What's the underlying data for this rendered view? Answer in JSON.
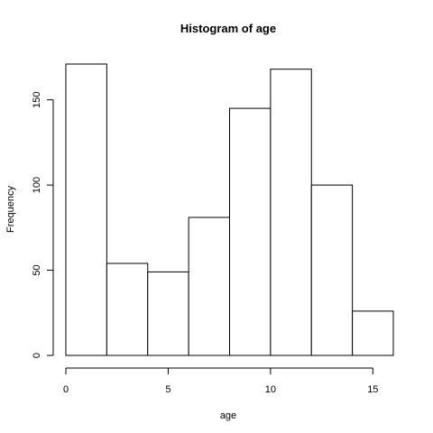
{
  "chart_data": {
    "type": "bar",
    "title": "Histogram of age",
    "xlabel": "age",
    "ylabel": "Frequency",
    "bins": [
      {
        "from": 0,
        "to": 2,
        "count": 171
      },
      {
        "from": 2,
        "to": 4,
        "count": 54
      },
      {
        "from": 4,
        "to": 6,
        "count": 49
      },
      {
        "from": 6,
        "to": 8,
        "count": 81
      },
      {
        "from": 8,
        "to": 10,
        "count": 145
      },
      {
        "from": 10,
        "to": 12,
        "count": 168
      },
      {
        "from": 12,
        "to": 14,
        "count": 100
      },
      {
        "from": 14,
        "to": 16,
        "count": 26
      }
    ],
    "x_ticks": [
      0,
      5,
      10,
      15
    ],
    "y_ticks": [
      0,
      50,
      100,
      150
    ],
    "xlim": [
      0,
      16
    ],
    "ylim": [
      0,
      171
    ],
    "grid": false,
    "bar_fill": "#ffffff",
    "bar_stroke": "#000000"
  }
}
